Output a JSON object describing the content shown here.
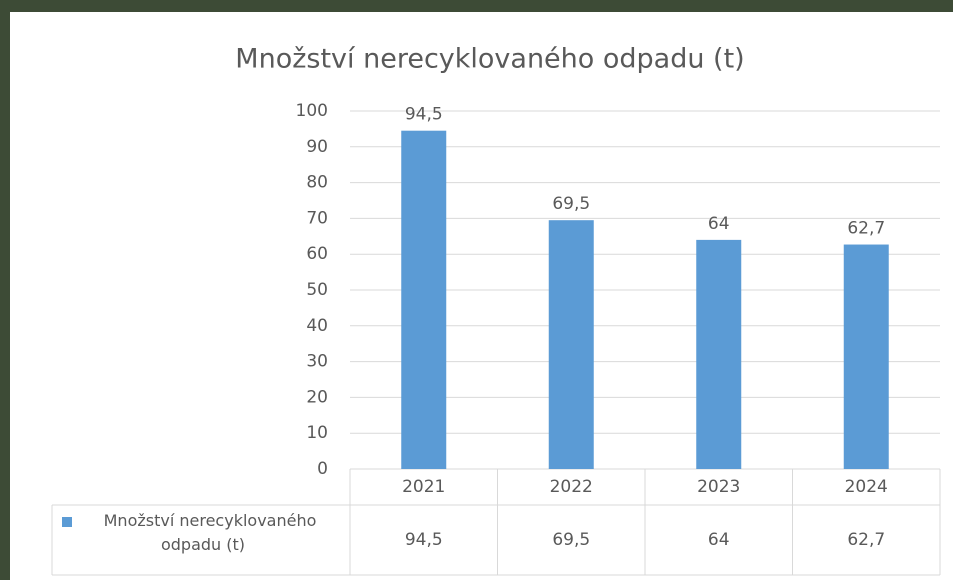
{
  "chart_data": {
    "type": "bar",
    "title": "Množství nerecyklovaného odpadu (t)",
    "categories": [
      "2021",
      "2022",
      "2023",
      "2024"
    ],
    "series": [
      {
        "name": "Množství nerecyklovaného odpadu (t)",
        "color": "#5b9bd5",
        "values": [
          94.5,
          69.5,
          64,
          62.7
        ],
        "value_labels": [
          "94,5",
          "69,5",
          "64",
          "62,7"
        ]
      }
    ],
    "ylim": [
      0,
      100
    ],
    "yticks": [
      0,
      10,
      20,
      30,
      40,
      50,
      60,
      70,
      80,
      90,
      100
    ],
    "grid": true,
    "legend": "table"
  }
}
